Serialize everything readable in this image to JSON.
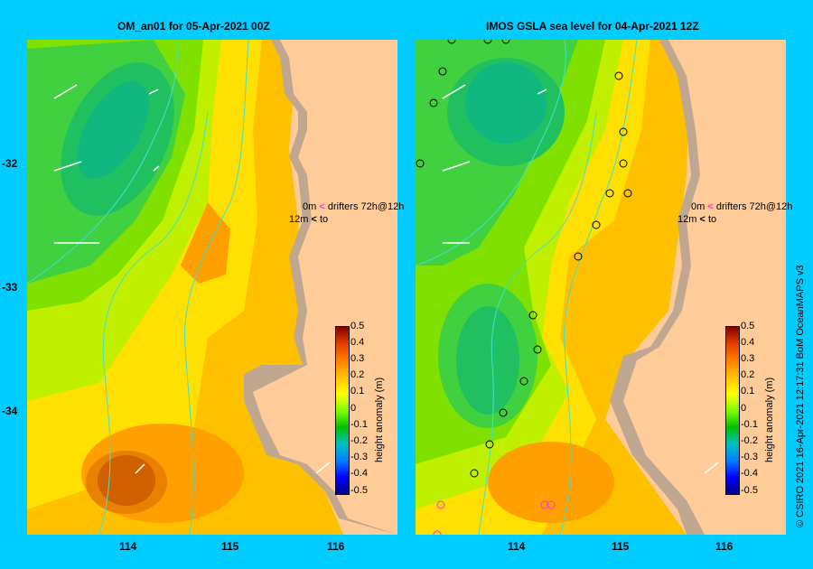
{
  "left_panel": {
    "title": "OM_an01  for 05-Apr-2021 00Z",
    "legend": {
      "line1_depth": "0m",
      "line1_text": "drifters 72h@12h",
      "line2_depth": "12m",
      "line2_text": "to"
    }
  },
  "right_panel": {
    "title": "IMOS  GSLA sea level   for 04-Apr-2021 12Z",
    "legend": {
      "line1_depth": "0m",
      "line1_text": "drifters 72h@12h",
      "line2_depth": "12m",
      "line2_text": "to"
    }
  },
  "axes": {
    "x_ticks": [
      "114",
      "115",
      "116"
    ],
    "y_ticks": [
      "-32",
      "-33",
      "-34"
    ]
  },
  "colorbar": {
    "label": "height anomaly (m)",
    "ticks": [
      "0.5",
      "0.4",
      "0.3",
      "0.2",
      "0.1",
      "0",
      "-0.1",
      "-0.2",
      "-0.3",
      "-0.4",
      "-0.5"
    ],
    "range": [
      -0.5,
      0.5
    ]
  },
  "credit": "© CSIRO 2021   16-Apr-2021 12:17:31 BoM OceanMAPS v3",
  "colors": {
    "background": "#00ccff",
    "land": "#c0a890",
    "neutral": "#ffcc99",
    "drifter_marker": "#ff33cc",
    "contour_line": "#40e0d0"
  }
}
